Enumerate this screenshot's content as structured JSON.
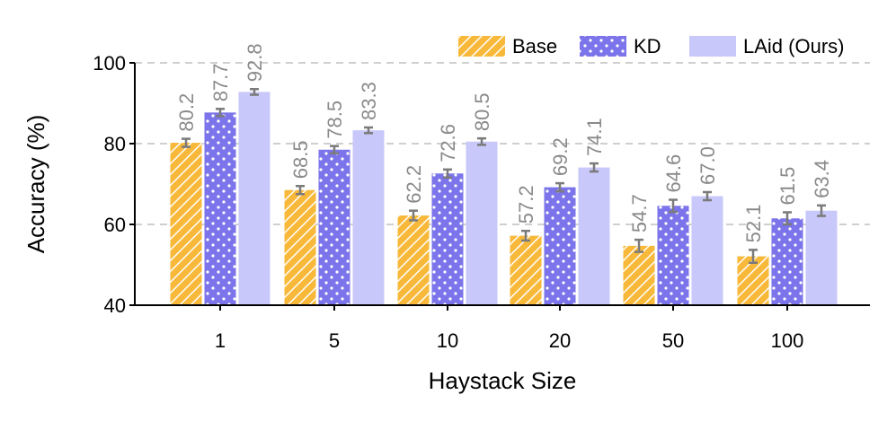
{
  "chart_data": {
    "type": "bar",
    "title": "",
    "xlabel": "Haystack Size",
    "ylabel": "Accuracy (%)",
    "categories": [
      "1",
      "5",
      "10",
      "20",
      "50",
      "100"
    ],
    "ylim": [
      40,
      100
    ],
    "yticks": [
      40,
      60,
      80,
      100
    ],
    "grid": "horizontal-dashed",
    "legend_position": "top-right",
    "series": [
      {
        "name": "Base",
        "color": "#f8b93b",
        "pattern": "diagonal-hatch",
        "values": [
          80.2,
          68.5,
          62.2,
          57.2,
          54.7,
          52.1
        ],
        "labels": [
          "80.2",
          "68.5",
          "62.2",
          "57.2",
          "54.7",
          "52.1"
        ],
        "errors": [
          1.0,
          1.0,
          1.2,
          1.2,
          1.5,
          1.6
        ]
      },
      {
        "name": "KD",
        "color": "#7b74ea",
        "pattern": "dots",
        "values": [
          87.7,
          78.5,
          72.6,
          69.2,
          64.6,
          61.5
        ],
        "labels": [
          "87.7",
          "78.5",
          "72.6",
          "69.2",
          "64.6",
          "61.5"
        ],
        "errors": [
          0.9,
          0.9,
          1.0,
          1.0,
          1.5,
          1.5
        ]
      },
      {
        "name": "LAid (Ours)",
        "color": "#c8c8fa",
        "pattern": "solid",
        "values": [
          92.8,
          83.3,
          80.5,
          74.1,
          67.0,
          63.4
        ],
        "labels": [
          "92.8",
          "83.3",
          "80.5",
          "74.1",
          "67.0",
          "63.4"
        ],
        "errors": [
          0.7,
          0.7,
          0.8,
          1.0,
          1.0,
          1.3
        ]
      }
    ]
  }
}
